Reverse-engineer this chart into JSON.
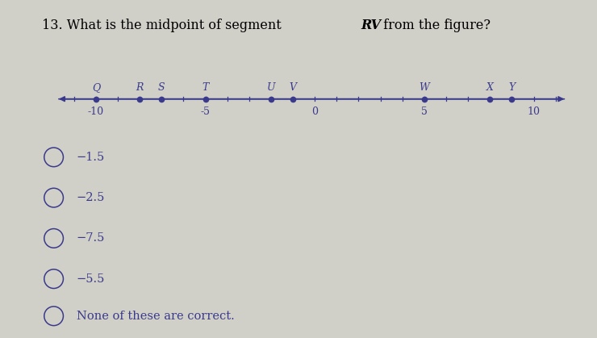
{
  "background_color": "#d0cfc8",
  "number_line": {
    "labeled_ticks": [
      -10,
      -5,
      0,
      5,
      10
    ],
    "tick_labels": [
      "-10",
      "-5",
      "0",
      "5",
      "10"
    ]
  },
  "points": [
    {
      "label": "Q",
      "x": -10
    },
    {
      "label": "R",
      "x": -8
    },
    {
      "label": "S",
      "x": -7
    },
    {
      "label": "T",
      "x": -5
    },
    {
      "label": "U",
      "x": -2
    },
    {
      "label": "V",
      "x": -1
    },
    {
      "label": "W",
      "x": 5
    },
    {
      "label": "X",
      "x": 8
    },
    {
      "label": "Y",
      "x": 9
    }
  ],
  "point_color": "#3a3a8c",
  "line_color": "#3a3a8c",
  "text_color": "#3a3a8c",
  "title_prefix": "13. What is the midpoint of segment ",
  "title_italic": "RV",
  "title_suffix": " from the figure?",
  "choices": [
    "−1.5",
    "−2.5",
    "−7.5",
    "−5.5"
  ],
  "last_choice": "None of these are correct.",
  "choice_fontsize": 10.5,
  "title_fontsize": 11.5,
  "numberline_fontsize": 9,
  "point_label_fontsize": 9
}
